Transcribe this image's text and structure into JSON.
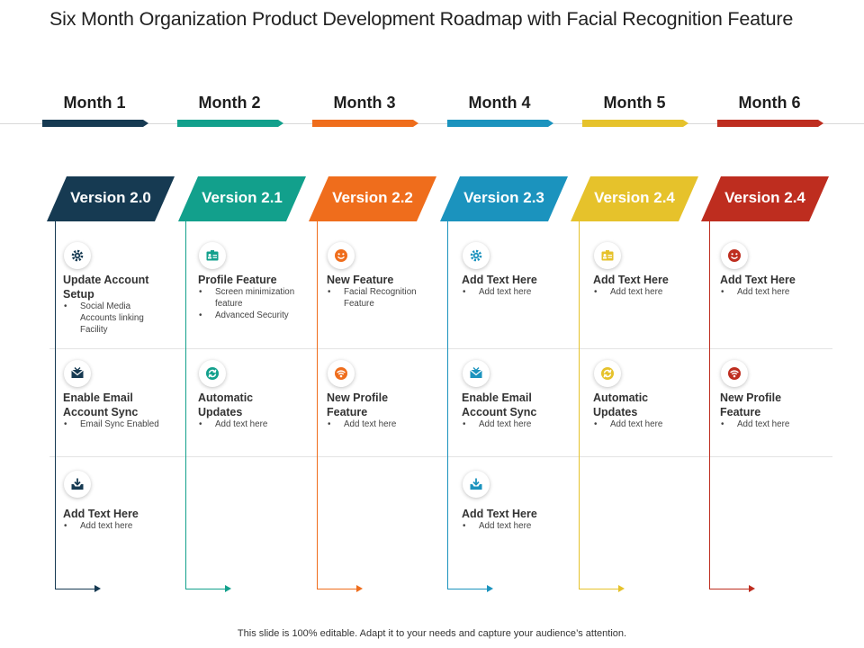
{
  "title": "Six Month Organization Product Development Roadmap with Facial Recognition Feature",
  "footer": "This slide is 100% editable. Adapt it to your needs and capture your audience’s attention.",
  "colors": [
    "#163a52",
    "#12a08c",
    "#ef6d1c",
    "#1b93be",
    "#e6c22b",
    "#be2d1f"
  ],
  "months": [
    "Month 1",
    "Month 2",
    "Month 3",
    "Month 4",
    "Month 5",
    "Month 6"
  ],
  "versions": [
    "Version 2.0",
    "Version 2.1",
    "Version 2.2",
    "Version 2.3",
    "Version 2.4",
    "Version 2.4"
  ],
  "columns": [
    {
      "items": [
        {
          "icon": "gear-icon",
          "title": "Update Account Setup",
          "bullets": [
            "Social Media Accounts linking Facility"
          ]
        },
        {
          "icon": "mail-icon",
          "title": "Enable Email Account  Sync",
          "bullets": [
            "Email  Sync Enabled"
          ]
        },
        {
          "icon": "inbox-download-icon",
          "title": "Add Text Here",
          "bullets": [
            "Add text here"
          ]
        }
      ]
    },
    {
      "items": [
        {
          "icon": "id-card-icon",
          "title": "Profile Feature",
          "bullets": [
            "Screen minimization feature",
            "Advanced Security"
          ]
        },
        {
          "icon": "refresh-icon",
          "title": "Automatic Updates",
          "bullets": [
            "Add text here"
          ]
        }
      ]
    },
    {
      "items": [
        {
          "icon": "smiley-face-icon",
          "title": "New Feature",
          "bullets": [
            "Facial Recognition Feature"
          ]
        },
        {
          "icon": "wifi-icon",
          "title": "New Profile Feature",
          "bullets": [
            "Add text here"
          ]
        }
      ]
    },
    {
      "items": [
        {
          "icon": "gear-icon",
          "title": "Add Text Here",
          "bullets": [
            "Add text here"
          ]
        },
        {
          "icon": "mail-icon",
          "title": "Enable Email Account  Sync",
          "bullets": [
            "Add text here"
          ]
        },
        {
          "icon": "inbox-download-icon",
          "title": "Add Text Here",
          "bullets": [
            "Add text here"
          ]
        }
      ]
    },
    {
      "items": [
        {
          "icon": "id-card-icon",
          "title": "Add Text Here",
          "bullets": [
            "Add text here"
          ]
        },
        {
          "icon": "refresh-icon",
          "title": "Automatic Updates",
          "bullets": [
            "Add text here"
          ]
        }
      ]
    },
    {
      "items": [
        {
          "icon": "smiley-face-icon",
          "title": "Add Text Here",
          "bullets": [
            "Add text here"
          ]
        },
        {
          "icon": "wifi-icon",
          "title": "New Profile Feature",
          "bullets": [
            "Add text here"
          ]
        }
      ]
    }
  ]
}
